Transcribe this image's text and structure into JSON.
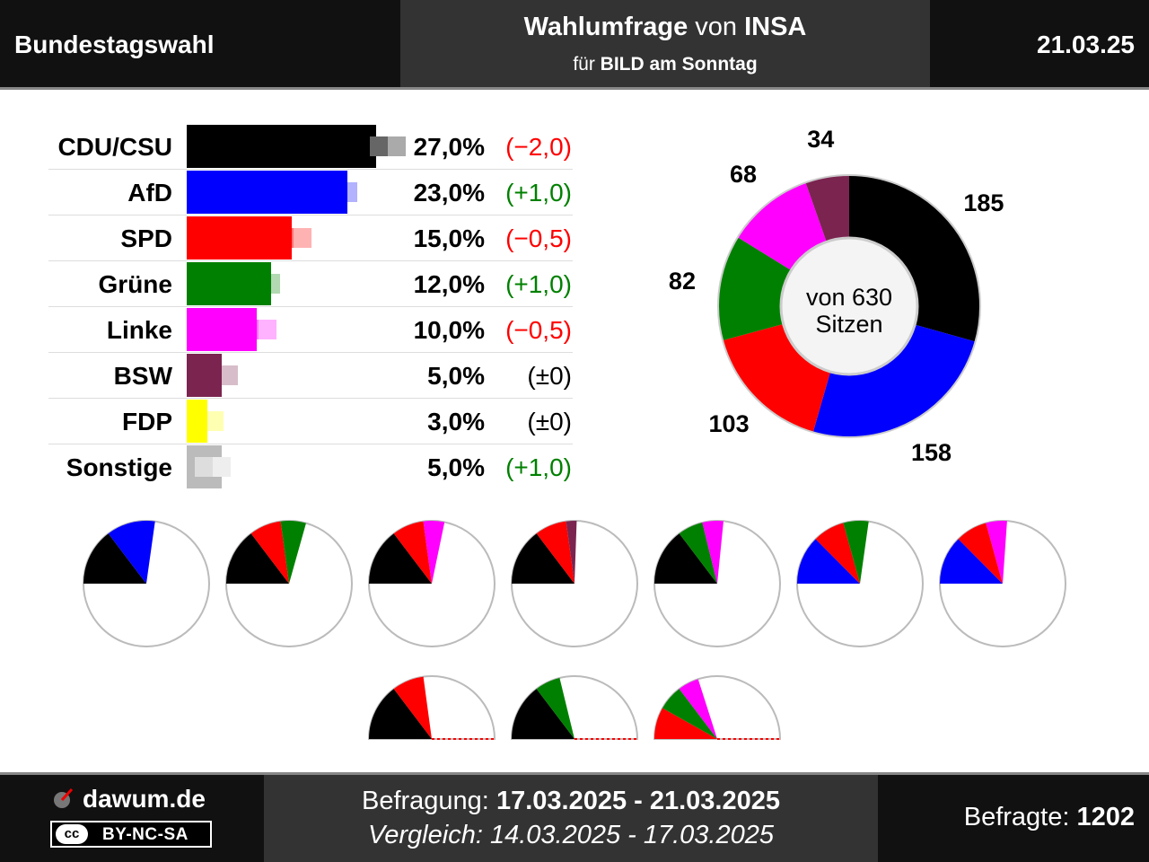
{
  "header": {
    "left": "Bundestagswahl",
    "title_bold1": "Wahlumfrage",
    "title_mid": " von ",
    "title_bold2": "INSA",
    "sub_pre": "für ",
    "sub_bold": "BILD am Sonntag",
    "date": "21.03.25"
  },
  "footer": {
    "brand": "dawum.de",
    "license_icon": "cc",
    "license": "BY-NC-SA",
    "befragung_label": "Befragung: ",
    "befragung_value": "17.03.2025 - 21.03.2025",
    "vergleich": "Vergleich: 14.03.2025 - 17.03.2025",
    "befragte_label": "Befragte: ",
    "befragte_value": "1202"
  },
  "seat_center": {
    "line1": "von 630",
    "line2": "Sitzen"
  },
  "chart_data": [
    {
      "type": "bar",
      "orientation": "horizontal",
      "categories": [
        "CDU/CSU",
        "AfD",
        "SPD",
        "Grüne",
        "Linke",
        "BSW",
        "FDP",
        "Sonstige"
      ],
      "values": [
        27.0,
        23.0,
        15.0,
        12.0,
        10.0,
        5.0,
        3.0,
        5.0
      ],
      "previous_values": [
        29.0,
        22.0,
        15.5,
        11.0,
        10.5,
        5.0,
        3.0,
        4.0
      ],
      "value_labels": [
        "27,0%",
        "23,0%",
        "15,0%",
        "12,0%",
        "10,0%",
        "5,0%",
        "3,0%",
        "5,0%"
      ],
      "change_labels": [
        "(−2,0)",
        "(+1,0)",
        "(−0,5)",
        "(+1,0)",
        "(−0,5)",
        "(±0)",
        "(±0)",
        "(+1,0)"
      ],
      "change_signs": [
        "neg",
        "pos",
        "neg",
        "pos",
        "neg",
        "zero",
        "zero",
        "pos"
      ],
      "colors": [
        "#000000",
        "#0000ff",
        "#ff0000",
        "#008000",
        "#ff00ff",
        "#7b2450",
        "#ffff00",
        "#bbbbbb"
      ],
      "change_colors": {
        "neg": "#ff0000",
        "pos": "#008000",
        "zero": "#000000"
      },
      "xlim": [
        0,
        40
      ]
    },
    {
      "type": "pie",
      "style": "donut",
      "total": 630,
      "parties": [
        "CDU/CSU",
        "AfD",
        "SPD",
        "Grüne",
        "Linke",
        "BSW"
      ],
      "seats": [
        185,
        158,
        103,
        82,
        68,
        34
      ],
      "seat_labels": [
        "185",
        "158",
        "103",
        "82",
        "68",
        "34"
      ],
      "colors": [
        "#000000",
        "#0000ff",
        "#ff0000",
        "#008000",
        "#ff00ff",
        "#7b2450"
      ]
    },
    {
      "type": "pie",
      "style": "coalition-semicircles",
      "total": 630,
      "majority": 316,
      "coalitions": [
        {
          "parties": [
            "CDU/CSU",
            "AfD"
          ],
          "seats": [
            185,
            158
          ],
          "colors": [
            "#000000",
            "#0000ff"
          ]
        },
        {
          "parties": [
            "CDU/CSU",
            "SPD",
            "Grüne"
          ],
          "seats": [
            185,
            103,
            82
          ],
          "colors": [
            "#000000",
            "#ff0000",
            "#008000"
          ]
        },
        {
          "parties": [
            "CDU/CSU",
            "SPD",
            "Linke"
          ],
          "seats": [
            185,
            103,
            68
          ],
          "colors": [
            "#000000",
            "#ff0000",
            "#ff00ff"
          ]
        },
        {
          "parties": [
            "CDU/CSU",
            "SPD",
            "BSW"
          ],
          "seats": [
            185,
            103,
            34
          ],
          "colors": [
            "#000000",
            "#ff0000",
            "#7b2450"
          ]
        },
        {
          "parties": [
            "CDU/CSU",
            "Grüne",
            "Linke"
          ],
          "seats": [
            185,
            82,
            68
          ],
          "colors": [
            "#000000",
            "#008000",
            "#ff00ff"
          ]
        },
        {
          "parties": [
            "AfD",
            "SPD",
            "Grüne"
          ],
          "seats": [
            158,
            103,
            82
          ],
          "colors": [
            "#0000ff",
            "#ff0000",
            "#008000"
          ]
        },
        {
          "parties": [
            "AfD",
            "SPD",
            "Linke"
          ],
          "seats": [
            158,
            103,
            68
          ],
          "colors": [
            "#0000ff",
            "#ff0000",
            "#ff00ff"
          ]
        },
        {
          "parties": [
            "CDU/CSU",
            "SPD"
          ],
          "seats": [
            185,
            103
          ],
          "colors": [
            "#000000",
            "#ff0000"
          ]
        },
        {
          "parties": [
            "CDU/CSU",
            "Grüne"
          ],
          "seats": [
            185,
            82
          ],
          "colors": [
            "#000000",
            "#008000"
          ]
        },
        {
          "parties": [
            "SPD",
            "Grüne",
            "Linke"
          ],
          "seats": [
            103,
            82,
            68
          ],
          "colors": [
            "#ff0000",
            "#008000",
            "#ff00ff"
          ]
        }
      ]
    }
  ]
}
